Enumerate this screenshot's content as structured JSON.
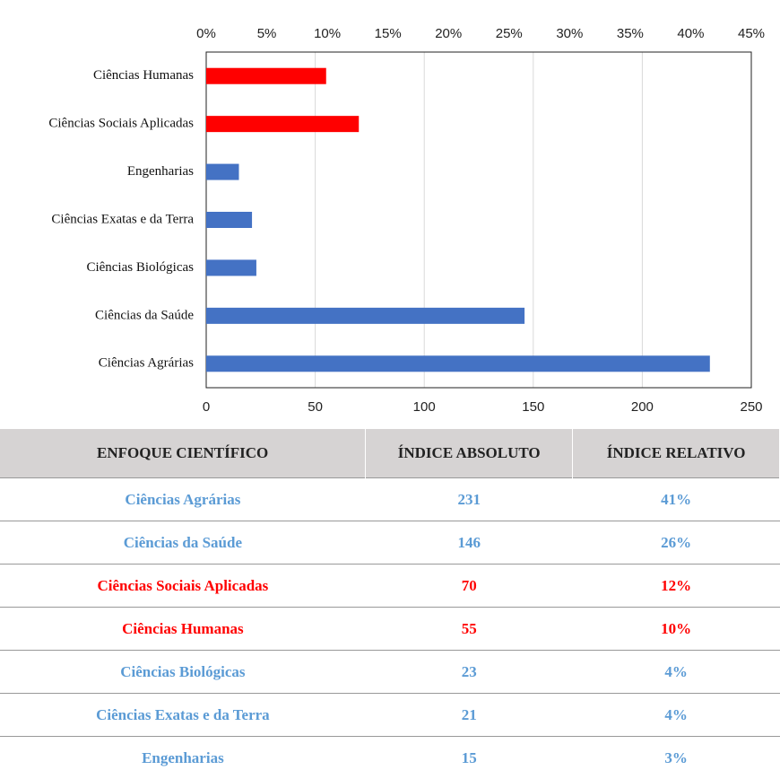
{
  "chart_data": {
    "type": "bar",
    "orientation": "horizontal",
    "categories": [
      "Ciências Humanas",
      "Ciências Sociais Aplicadas",
      "Engenharias",
      "Ciências Exatas e da Terra",
      "Ciências Biológicas",
      "Ciências da Saúde",
      "Ciências Agrárias"
    ],
    "values": [
      55,
      70,
      15,
      21,
      23,
      146,
      231
    ],
    "colors": [
      "#ff0000",
      "#ff0000",
      "#4472c4",
      "#4472c4",
      "#4472c4",
      "#4472c4",
      "#4472c4"
    ],
    "xlim": [
      0,
      250
    ],
    "xticks": [
      0,
      50,
      100,
      150,
      200,
      250
    ],
    "x2lim": [
      0,
      45
    ],
    "x2ticks": [
      {
        "value": 0,
        "label": "0%"
      },
      {
        "value": 5,
        "label": "5%"
      },
      {
        "value": 10,
        "label": "10%"
      },
      {
        "value": 15,
        "label": "15%"
      },
      {
        "value": 20,
        "label": "20%"
      },
      {
        "value": 25,
        "label": "25%"
      },
      {
        "value": 30,
        "label": "30%"
      },
      {
        "value": 35,
        "label": "35%"
      },
      {
        "value": 40,
        "label": "40%"
      },
      {
        "value": 45,
        "label": "45%"
      }
    ],
    "grid": true
  },
  "table": {
    "headers": [
      "ENFOQUE CIENTÍFICO",
      "ÍNDICE ABSOLUTO",
      "ÍNDICE RELATIVO"
    ],
    "rows": [
      {
        "cells": [
          "Ciências Agrárias",
          231,
          "41%"
        ],
        "color": "#5b9bd5"
      },
      {
        "cells": [
          "Ciências da Saúde",
          146,
          "26%"
        ],
        "color": "#5b9bd5"
      },
      {
        "cells": [
          "Ciências Sociais Aplicadas",
          70,
          "12%"
        ],
        "color": "#ff0000"
      },
      {
        "cells": [
          "Ciências Humanas",
          55,
          "10%"
        ],
        "color": "#ff0000"
      },
      {
        "cells": [
          "Ciências Biológicas",
          23,
          "4%"
        ],
        "color": "#5b9bd5"
      },
      {
        "cells": [
          "Ciências Exatas e da Terra",
          21,
          "4%"
        ],
        "color": "#5b9bd5"
      },
      {
        "cells": [
          "Engenharias",
          15,
          "3%"
        ],
        "color": "#5b9bd5"
      }
    ]
  }
}
